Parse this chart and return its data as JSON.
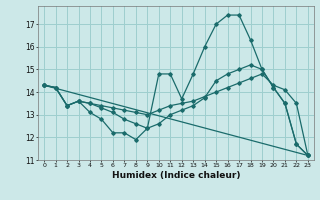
{
  "xlabel": "Humidex (Indice chaleur)",
  "bg_color": "#cce8e8",
  "grid_color": "#9ecece",
  "line_color": "#1a6b6b",
  "xlim": [
    -0.5,
    23.5
  ],
  "ylim": [
    11,
    17.8
  ],
  "yticks": [
    11,
    12,
    13,
    14,
    15,
    16,
    17
  ],
  "xticks": [
    0,
    1,
    2,
    3,
    4,
    5,
    6,
    7,
    8,
    9,
    10,
    11,
    12,
    13,
    14,
    15,
    16,
    17,
    18,
    19,
    20,
    21,
    22,
    23
  ],
  "line1_x": [
    0,
    1,
    2,
    3,
    4,
    5,
    6,
    7,
    8,
    9,
    10,
    11,
    12,
    13,
    14,
    15,
    16,
    17,
    18,
    19,
    20,
    21,
    22,
    23
  ],
  "line1_y": [
    14.3,
    14.2,
    13.4,
    13.6,
    13.1,
    12.8,
    12.2,
    12.2,
    11.9,
    12.4,
    14.8,
    14.8,
    13.7,
    14.8,
    16.0,
    17.0,
    17.4,
    17.4,
    16.3,
    15.0,
    14.2,
    13.5,
    11.7,
    11.2
  ],
  "line2_x": [
    0,
    1,
    2,
    3,
    4,
    5,
    6,
    7,
    8,
    9,
    10,
    11,
    12,
    13,
    14,
    15,
    16,
    17,
    18,
    19,
    20,
    21,
    22,
    23
  ],
  "line2_y": [
    14.3,
    14.2,
    13.4,
    13.6,
    13.5,
    13.4,
    13.3,
    13.2,
    13.1,
    13.0,
    13.2,
    13.4,
    13.5,
    13.6,
    13.8,
    14.0,
    14.2,
    14.4,
    14.6,
    14.8,
    14.3,
    14.1,
    13.5,
    11.2
  ],
  "line3_x": [
    0,
    1,
    2,
    3,
    4,
    5,
    6,
    7,
    8,
    9,
    10,
    11,
    12,
    13,
    14,
    15,
    16,
    17,
    18,
    19,
    20,
    21,
    22,
    23
  ],
  "line3_y": [
    14.3,
    14.2,
    13.4,
    13.6,
    13.5,
    13.3,
    13.1,
    12.8,
    12.6,
    12.4,
    12.6,
    13.0,
    13.2,
    13.4,
    13.75,
    14.5,
    14.8,
    15.0,
    15.2,
    15.0,
    14.2,
    13.5,
    11.7,
    11.2
  ],
  "line4_x": [
    0,
    23
  ],
  "line4_y": [
    14.3,
    11.2
  ]
}
